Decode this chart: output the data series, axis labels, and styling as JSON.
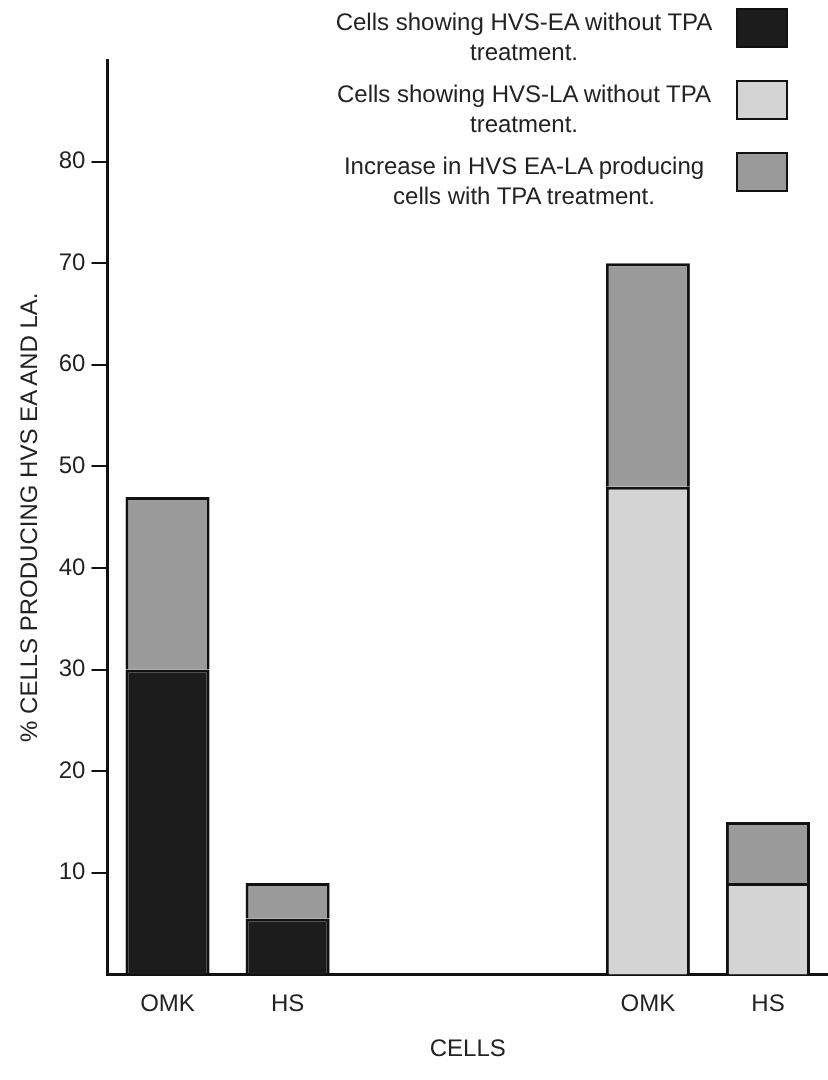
{
  "chart_data": {
    "type": "bar",
    "stacked": true,
    "xlabel": "CELLS",
    "ylabel": "% CELLS PRODUCING HVS EA AND LA.",
    "categories": [
      "OMK",
      "HS",
      null,
      null,
      "OMK",
      "HS"
    ],
    "series": [
      {
        "name": "Cells showing HVS-EA without TPA treatment.",
        "color": "#1c1c1c",
        "values": [
          30,
          5.5,
          null,
          null,
          null,
          null
        ]
      },
      {
        "name": "Cells showing HVS-LA without TPA treatment.",
        "color": "#d4d4d4",
        "values": [
          null,
          null,
          null,
          null,
          48,
          9
        ]
      },
      {
        "name": "Increase in HVS EA-LA producing cells with TPA treatment.",
        "color": "#9a9a9a",
        "values": [
          17,
          3.5,
          null,
          null,
          22,
          6
        ]
      }
    ],
    "ylim": [
      0,
      90
    ],
    "yticks": [
      10,
      20,
      30,
      40,
      50,
      60,
      70,
      80
    ],
    "grid": false,
    "legend": "top right"
  }
}
